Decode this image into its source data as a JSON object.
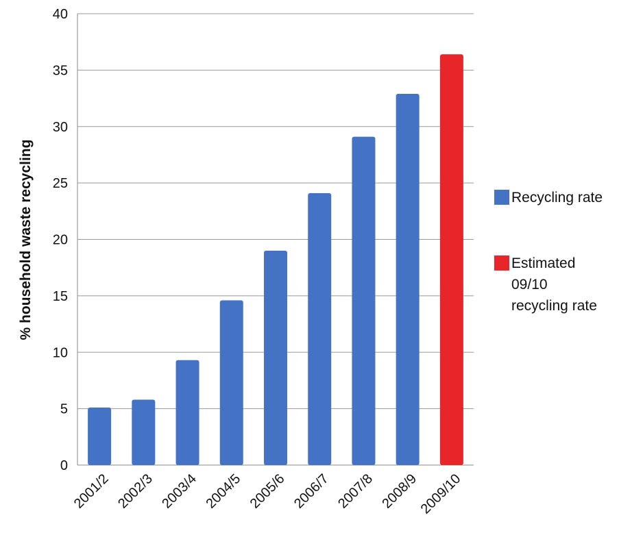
{
  "chart_data": {
    "type": "bar",
    "title": "",
    "xlabel": "",
    "ylabel": "% household waste recycling",
    "ylim": [
      0,
      40
    ],
    "yticks": [
      "0",
      "5",
      "10",
      "15",
      "20",
      "25",
      "30",
      "35",
      "40"
    ],
    "categories": [
      "2001/2",
      "2002/3",
      "2003/4",
      "2004/5",
      "2005/6",
      "2006/7",
      "2007/8",
      "2008/9",
      "2009/10"
    ],
    "series": [
      {
        "name": "Recycling rate",
        "color": "#4472C4",
        "values": [
          5.1,
          5.8,
          9.3,
          14.6,
          19.0,
          24.1,
          29.1,
          32.9,
          null
        ]
      },
      {
        "name": "Estimated 09/10 recycling rate",
        "color": "#E8262A",
        "values": [
          null,
          null,
          null,
          null,
          null,
          null,
          null,
          null,
          36.4
        ]
      }
    ],
    "legend": {
      "placement": "right",
      "entries": [
        {
          "lines": [
            "Recycling rate"
          ],
          "color": "#4472C4"
        },
        {
          "lines": [
            "Estimated",
            "09/10",
            "recycling rate"
          ],
          "color": "#E8262A"
        }
      ]
    },
    "grid": true
  }
}
